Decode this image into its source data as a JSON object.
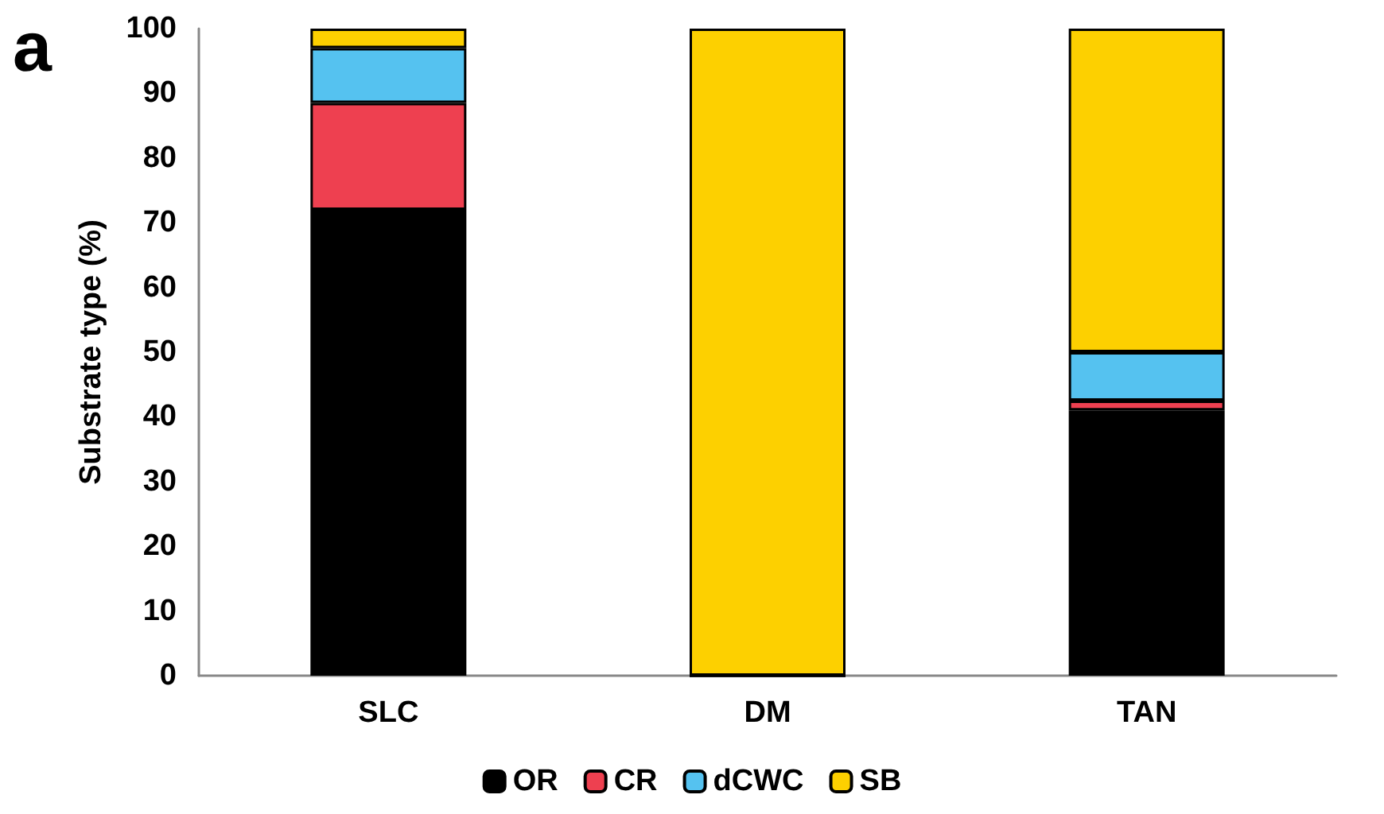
{
  "chart_data": {
    "type": "bar",
    "stacked": true,
    "ylabel": "Substrate type (%)",
    "annotations": [
      "a"
    ],
    "categories": [
      "SLC",
      "DM",
      "TAN"
    ],
    "series": [
      {
        "name": "OR",
        "color": "#000000",
        "values": [
          72,
          0,
          41
        ]
      },
      {
        "name": "CR",
        "color": "#ee4050",
        "values": [
          16.5,
          0,
          1.5
        ]
      },
      {
        "name": "dCWC",
        "color": "#55c2f0",
        "values": [
          8.5,
          0,
          7.5
        ]
      },
      {
        "name": "SB",
        "color": "#fdd000",
        "values": [
          3,
          100,
          50
        ]
      }
    ],
    "ylim": [
      0,
      100
    ],
    "yticks": [
      0,
      10,
      20,
      30,
      40,
      50,
      60,
      70,
      80,
      90,
      100
    ],
    "grid": false,
    "legend": "bottom"
  }
}
